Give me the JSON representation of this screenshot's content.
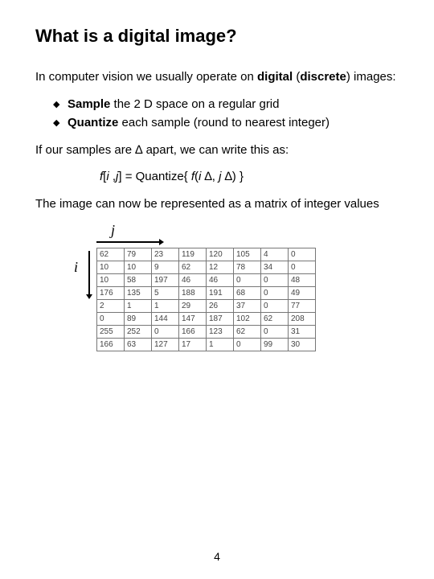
{
  "title": "What is a digital image?",
  "para1_pre": "In computer vision we usually operate on ",
  "para1_bold1": "digital",
  "para1_mid": " (",
  "para1_bold2": "discrete",
  "para1_post": ") images:",
  "bullets": {
    "b1_bold": "Sample",
    "b1_rest": " the 2 D space on a regular grid",
    "b2_bold": "Quantize",
    "b2_rest": " each sample (round to nearest integer)"
  },
  "para2_pre": "If our samples are ",
  "para2_delta": "∆",
  "para2_post": " apart, we can write this as:",
  "formula": {
    "f1": "f",
    "br1": "[",
    "i1": "i",
    "sep1": " ,",
    "j1": "j",
    "eq": "] = Quantize{ ",
    "f2": "f",
    "paren": "(",
    "i2": "i",
    "sp1": " ",
    "d1": "∆",
    "c1": ", ",
    "j2": "j",
    "sp2": " ",
    "d2": "∆",
    "close": ") }"
  },
  "para3": "The image can now be represented as a matrix of integer values",
  "axis_i": "i",
  "axis_j": "j",
  "matrix": {
    "columns": 8,
    "cell_border_color": "#777777",
    "cell_fontsize": 10,
    "text_color": "#444444",
    "rows": [
      [
        "62",
        "79",
        "23",
        "119",
        "120",
        "105",
        "4",
        "0"
      ],
      [
        "10",
        "10",
        "9",
        "62",
        "12",
        "78",
        "34",
        "0"
      ],
      [
        "10",
        "58",
        "197",
        "46",
        "46",
        "0",
        "0",
        "48"
      ],
      [
        "176",
        "135",
        "5",
        "188",
        "191",
        "68",
        "0",
        "49"
      ],
      [
        "2",
        "1",
        "1",
        "29",
        "26",
        "37",
        "0",
        "77"
      ],
      [
        "0",
        "89",
        "144",
        "147",
        "187",
        "102",
        "62",
        "208"
      ],
      [
        "255",
        "252",
        "0",
        "166",
        "123",
        "62",
        "0",
        "31"
      ],
      [
        "166",
        "63",
        "127",
        "17",
        "1",
        "0",
        "99",
        "30"
      ]
    ]
  },
  "page_number": "4",
  "colors": {
    "background": "#ffffff",
    "text": "#000000"
  }
}
